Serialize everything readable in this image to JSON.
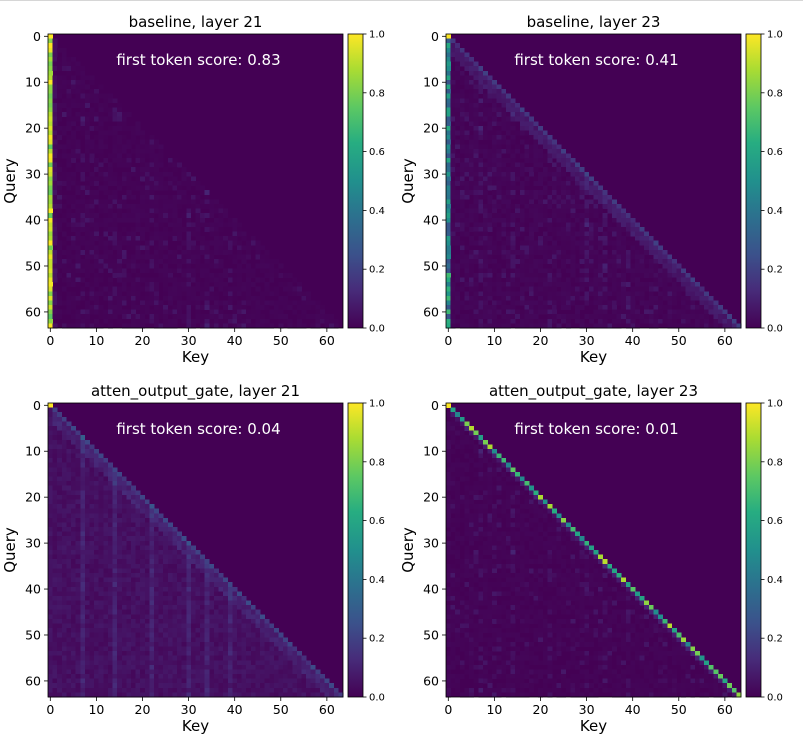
{
  "chart_data": [
    {
      "type": "heatmap",
      "title": "baseline, layer 21",
      "xlabel": "Key",
      "ylabel": "Query",
      "annotation": "first token score: 0.83",
      "pattern": "sink",
      "first_token_score": 0.83,
      "size": 64,
      "xlim": [
        0,
        63
      ],
      "ylim": [
        63,
        0
      ],
      "x_ticks": [
        "0",
        "10",
        "20",
        "30",
        "40",
        "50",
        "60"
      ],
      "y_ticks": [
        "0",
        "10",
        "20",
        "30",
        "40",
        "50",
        "60"
      ],
      "colorbar_ticks": [
        "0.0",
        "0.2",
        "0.4",
        "0.6",
        "0.8",
        "1.0"
      ],
      "colorbar_range": [
        0.0,
        1.0
      ],
      "colormap": "viridis"
    },
    {
      "type": "heatmap",
      "title": "baseline, layer 23",
      "xlabel": "Key",
      "ylabel": "Query",
      "annotation": "first token score: 0.41",
      "pattern": "sink_diag",
      "first_token_score": 0.41,
      "size": 64,
      "xlim": [
        0,
        63
      ],
      "ylim": [
        63,
        0
      ],
      "x_ticks": [
        "0",
        "10",
        "20",
        "30",
        "40",
        "50",
        "60"
      ],
      "y_ticks": [
        "0",
        "10",
        "20",
        "30",
        "40",
        "50",
        "60"
      ],
      "colorbar_ticks": [
        "0.0",
        "0.2",
        "0.4",
        "0.6",
        "0.8",
        "1.0"
      ],
      "colorbar_range": [
        0.0,
        1.0
      ],
      "colormap": "viridis"
    },
    {
      "type": "heatmap",
      "title": "atten_output_gate, layer 21",
      "xlabel": "Key",
      "ylabel": "Query",
      "annotation": "first token score: 0.04",
      "pattern": "diffuse",
      "first_token_score": 0.04,
      "size": 64,
      "xlim": [
        0,
        63
      ],
      "ylim": [
        63,
        0
      ],
      "x_ticks": [
        "0",
        "10",
        "20",
        "30",
        "40",
        "50",
        "60"
      ],
      "y_ticks": [
        "0",
        "10",
        "20",
        "30",
        "40",
        "50",
        "60"
      ],
      "colorbar_ticks": [
        "0.0",
        "0.2",
        "0.4",
        "0.6",
        "0.8",
        "1.0"
      ],
      "colorbar_range": [
        0.0,
        1.0
      ],
      "colormap": "viridis"
    },
    {
      "type": "heatmap",
      "title": "atten_output_gate, layer 23",
      "xlabel": "Key",
      "ylabel": "Query",
      "annotation": "first token score: 0.01",
      "pattern": "diag",
      "first_token_score": 0.01,
      "size": 64,
      "xlim": [
        0,
        63
      ],
      "ylim": [
        63,
        0
      ],
      "x_ticks": [
        "0",
        "10",
        "20",
        "30",
        "40",
        "50",
        "60"
      ],
      "y_ticks": [
        "0",
        "10",
        "20",
        "30",
        "40",
        "50",
        "60"
      ],
      "colorbar_ticks": [
        "0.0",
        "0.2",
        "0.4",
        "0.6",
        "0.8",
        "1.0"
      ],
      "colorbar_range": [
        0.0,
        1.0
      ],
      "colormap": "viridis"
    }
  ]
}
